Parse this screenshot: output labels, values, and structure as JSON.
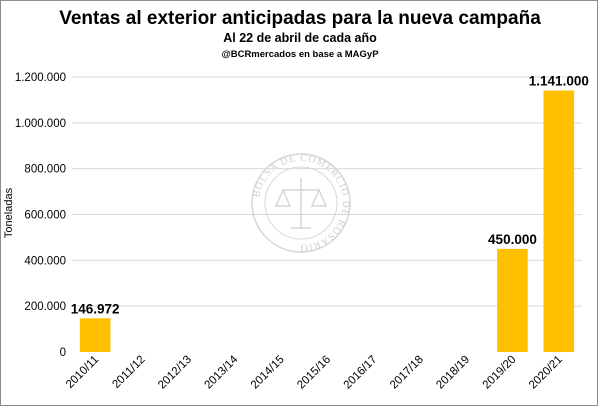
{
  "chart_data": {
    "type": "bar",
    "title": "Ventas al exterior anticipadas para la nueva campaña",
    "subtitle": "Al 22 de abril de cada año",
    "source": "@BCRmercados en base a MAGyP",
    "ylabel": "Toneladas",
    "xlabel": "",
    "categories": [
      "2010/11",
      "2011/12",
      "2012/13",
      "2013/14",
      "2014/15",
      "2015/16",
      "2016/17",
      "2017/18",
      "2018/19",
      "2019/20",
      "2020/21"
    ],
    "values": [
      146972,
      0,
      0,
      0,
      0,
      0,
      0,
      0,
      0,
      450000,
      1141000
    ],
    "data_labels": [
      "146.972",
      "",
      "",
      "",
      "",
      "",
      "",
      "",
      "",
      "450.000",
      "1.141.000"
    ],
    "ylim": [
      0,
      1200000
    ],
    "yticks": [
      0,
      200000,
      400000,
      600000,
      800000,
      1000000,
      1200000
    ],
    "ytick_labels": [
      "0",
      "200.000",
      "400.000",
      "600.000",
      "800.000",
      "1.000.000",
      "1.200.000"
    ],
    "grid": true,
    "bar_color": "#FFC000",
    "grid_color": "#d9d9d9"
  },
  "watermark": {
    "text": "BOLSA DE COMERCIO DE ROSARIO"
  }
}
